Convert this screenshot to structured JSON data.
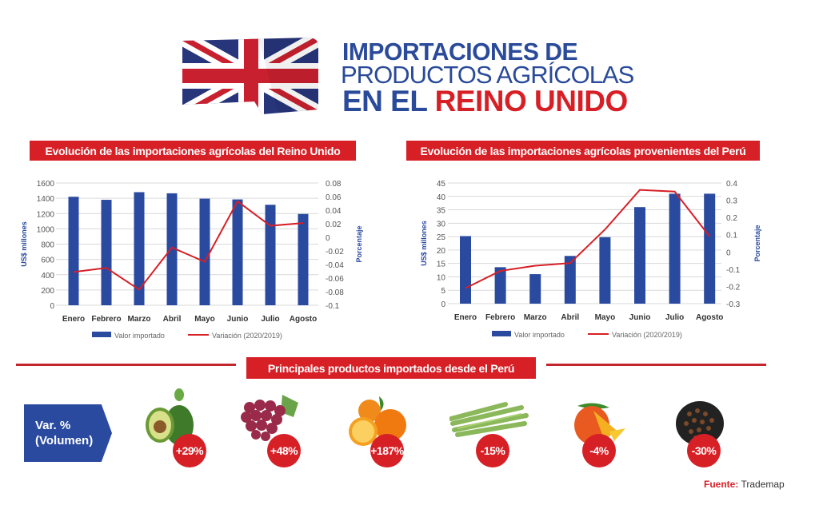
{
  "header": {
    "title_line1": "IMPORTACIONES DE",
    "title_line2": "PRODUCTOS AGRÍCOLAS",
    "title_line3a": "EN EL",
    "title_line3b": "REINO UNIDO",
    "flag_icon": "union-jack-flag"
  },
  "colors": {
    "blue": "#2a4aa0",
    "red": "#d71f26",
    "grid": "#d9d9d9"
  },
  "chart_data": [
    {
      "type": "bar",
      "title": "Evolución de las importaciones agrícolas del Reino Unido",
      "categories": [
        "Enero",
        "Febrero",
        "Marzo",
        "Abril",
        "Mayo",
        "Junio",
        "Julio",
        "Agosto"
      ],
      "ylabel": "US$ millones",
      "ylabel_right": "Porcentaje",
      "ylim": [
        0,
        1600
      ],
      "yticks": [
        "0",
        "200",
        "400",
        "600",
        "800",
        "1000",
        "1200",
        "1400",
        "1600"
      ],
      "ylim_right": [
        -0.1,
        0.08
      ],
      "yticks_right": [
        "-0.1",
        "-0.08",
        "-0.06",
        "-0.04",
        "-0.02",
        "0",
        "0.02",
        "0.04",
        "0.06",
        "0.08"
      ],
      "grid": true,
      "legend_position": "bottom",
      "series": [
        {
          "name": "Valor importado",
          "type": "bar",
          "axis": "left",
          "values": [
            1420,
            1380,
            1480,
            1465,
            1395,
            1385,
            1315,
            1195
          ]
        },
        {
          "name": "Variación (2020/2019)",
          "type": "line",
          "axis": "right",
          "values": [
            -0.051,
            -0.045,
            -0.077,
            -0.015,
            -0.036,
            0.053,
            0.017,
            0.021
          ]
        }
      ]
    },
    {
      "type": "bar",
      "title": "Evolución de las importaciones agrícolas provenientes del Perú",
      "categories": [
        "Enero",
        "Febrero",
        "Marzo",
        "Abril",
        "Mayo",
        "Junio",
        "Julio",
        "Agosto"
      ],
      "ylabel": "US$ millones",
      "ylabel_right": "Porcentaje",
      "ylim": [
        0,
        45
      ],
      "yticks": [
        "0",
        "5",
        "10",
        "15",
        "20",
        "25",
        "30",
        "35",
        "40",
        "45"
      ],
      "ylim_right": [
        -0.3,
        0.4
      ],
      "yticks_right": [
        "-0.3",
        "-0.2",
        "-0.1",
        "0",
        "0.1",
        "0.2",
        "0.3",
        "0.4"
      ],
      "grid": true,
      "legend_position": "bottom",
      "series": [
        {
          "name": "Valor importado",
          "type": "bar",
          "axis": "left",
          "values": [
            25.2,
            13.6,
            11,
            17.8,
            24.8,
            36,
            41,
            41
          ]
        },
        {
          "name": "Variación (2020/2019)",
          "type": "line",
          "axis": "right",
          "values": [
            -0.21,
            -0.11,
            -0.08,
            -0.065,
            0.13,
            0.36,
            0.35,
            0.09
          ]
        }
      ]
    }
  ],
  "products": {
    "title": "Principales productos importados desde el Perú",
    "var_label_line1": "Var. %",
    "var_label_line2": "(Volumen)",
    "items": [
      {
        "icon": "avocado-icon",
        "change": "+29%"
      },
      {
        "icon": "grapes-icon",
        "change": "+48%"
      },
      {
        "icon": "orange-icon",
        "change": "+187%"
      },
      {
        "icon": "asparagus-icon",
        "change": "-15%"
      },
      {
        "icon": "mango-icon",
        "change": "-4%"
      },
      {
        "icon": "pepper-icon",
        "change": "-30%"
      }
    ]
  },
  "source": {
    "label": "Fuente:",
    "value": "Trademap"
  }
}
